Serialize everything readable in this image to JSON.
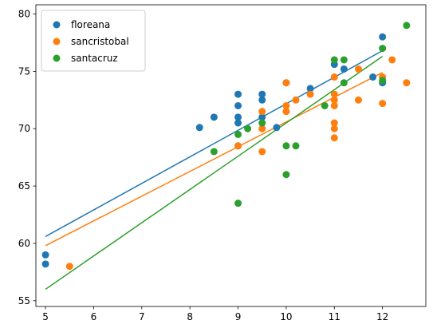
{
  "chart_data": {
    "type": "scatter",
    "title": "",
    "xlabel": "",
    "ylabel": "",
    "xlim": [
      4.8,
      12.9
    ],
    "ylim": [
      54.5,
      80.8
    ],
    "xticks": [
      5,
      6,
      7,
      8,
      9,
      10,
      11,
      12
    ],
    "yticks": [
      55,
      60,
      65,
      70,
      75,
      80
    ],
    "xtick_labels": [
      "5",
      "6",
      "7",
      "8",
      "9",
      "10",
      "11",
      "12"
    ],
    "ytick_labels": [
      "55",
      "60",
      "65",
      "70",
      "75",
      "80"
    ],
    "grid": false,
    "legend_position": "top-left",
    "series": [
      {
        "name": "floreana",
        "color": "#1f77b4",
        "points": [
          [
            5.0,
            59.0
          ],
          [
            5.0,
            58.2
          ],
          [
            8.2,
            70.1
          ],
          [
            8.5,
            71.0
          ],
          [
            9.0,
            73.0
          ],
          [
            9.0,
            72.0
          ],
          [
            9.0,
            71.0
          ],
          [
            9.0,
            70.5
          ],
          [
            9.0,
            68.5
          ],
          [
            9.5,
            73.0
          ],
          [
            9.5,
            72.5
          ],
          [
            9.5,
            71.0
          ],
          [
            9.8,
            70.1
          ],
          [
            10.0,
            74.0
          ],
          [
            10.5,
            73.5
          ],
          [
            11.0,
            75.6
          ],
          [
            11.2,
            75.2
          ],
          [
            11.8,
            74.5
          ],
          [
            12.0,
            78.0
          ],
          [
            12.0,
            74.0
          ]
        ],
        "fit": [
          [
            5.0,
            60.6
          ],
          [
            12.0,
            76.8
          ]
        ]
      },
      {
        "name": "sancristobal",
        "color": "#ff7f0e",
        "points": [
          [
            5.5,
            58.0
          ],
          [
            9.0,
            68.5
          ],
          [
            9.5,
            71.5
          ],
          [
            9.5,
            70.0
          ],
          [
            9.5,
            68.0
          ],
          [
            10.0,
            74.0
          ],
          [
            10.0,
            72.0
          ],
          [
            10.0,
            71.5
          ],
          [
            10.2,
            72.5
          ],
          [
            10.5,
            73.0
          ],
          [
            11.0,
            74.5
          ],
          [
            11.0,
            73.0
          ],
          [
            11.0,
            72.5
          ],
          [
            11.0,
            72.0
          ],
          [
            11.0,
            70.5
          ],
          [
            11.0,
            70.0
          ],
          [
            11.0,
            69.2
          ],
          [
            11.5,
            75.2
          ],
          [
            11.5,
            72.5
          ],
          [
            12.0,
            74.5
          ],
          [
            12.0,
            72.2
          ],
          [
            12.2,
            76.0
          ],
          [
            12.5,
            74.0
          ]
        ],
        "fit": [
          [
            5.0,
            59.8
          ],
          [
            12.0,
            74.9
          ]
        ]
      },
      {
        "name": "santacruz",
        "color": "#2ca02c",
        "points": [
          [
            8.5,
            68.0
          ],
          [
            9.0,
            69.5
          ],
          [
            9.0,
            63.5
          ],
          [
            9.2,
            70.0
          ],
          [
            9.5,
            70.5
          ],
          [
            10.0,
            68.5
          ],
          [
            10.0,
            66.0
          ],
          [
            10.2,
            68.5
          ],
          [
            10.8,
            72.0
          ],
          [
            11.0,
            76.0
          ],
          [
            11.2,
            76.0
          ],
          [
            11.2,
            74.0
          ],
          [
            12.0,
            77.0
          ],
          [
            12.0,
            74.2
          ],
          [
            12.5,
            79.0
          ]
        ],
        "fit": [
          [
            5.0,
            56.0
          ],
          [
            12.0,
            76.3
          ]
        ]
      }
    ]
  }
}
